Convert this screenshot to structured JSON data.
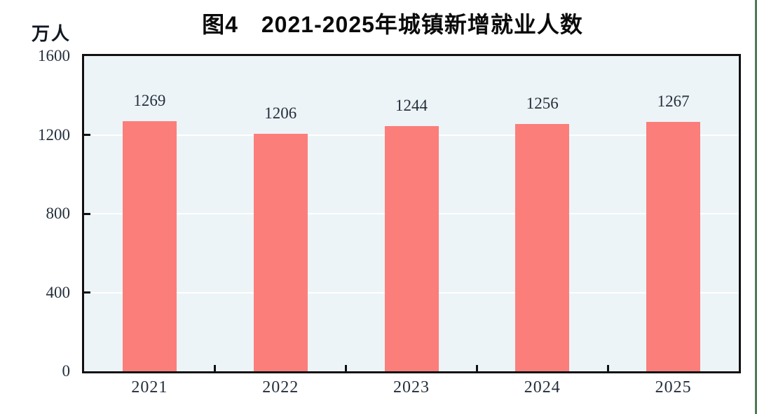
{
  "page": {
    "right_border_color": "#4d7d55"
  },
  "chart_data": {
    "type": "bar",
    "title": "图4　2021-2025年城镇新增就业人数",
    "unit_label": "万人",
    "categories": [
      "2021",
      "2022",
      "2023",
      "2024",
      "2025"
    ],
    "values": [
      1269,
      1206,
      1244,
      1256,
      1267
    ],
    "xlabel": "",
    "ylabel": "万人",
    "ylim": [
      0,
      1600
    ],
    "yticks": [
      0,
      400,
      800,
      1200,
      1600
    ],
    "grid": "horizontal-white",
    "legend": "none",
    "data_labels": true,
    "bar_color": "#FB7E7B",
    "plot_bg": "#EDF4F7",
    "grid_color": "#FFFFFF",
    "axis_color": "#111111",
    "text_color": "#242f3c"
  }
}
